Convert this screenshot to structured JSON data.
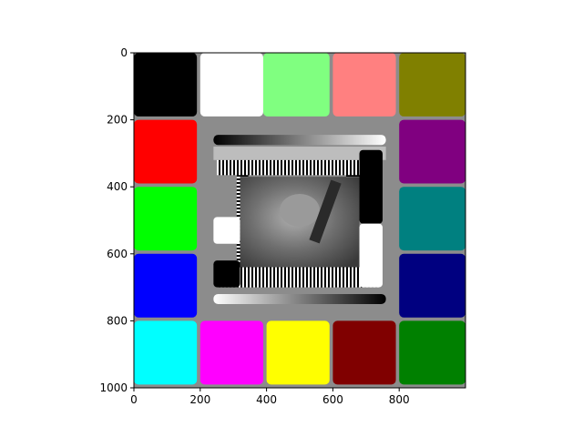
{
  "chart_data": {
    "type": "heatmap",
    "title": "",
    "xlabel": "",
    "ylabel": "",
    "xlim": [
      0,
      1000
    ],
    "ylim": [
      1000,
      0
    ],
    "x_ticks": [
      0,
      200,
      400,
      600,
      800
    ],
    "y_ticks": [
      0,
      200,
      400,
      600,
      800,
      1000
    ],
    "x_tick_labels": [
      "0",
      "200",
      "400",
      "600",
      "800"
    ],
    "y_tick_labels": [
      "0",
      "200",
      "400",
      "600",
      "800",
      "1000"
    ],
    "grid": false,
    "legend": "none",
    "background_color": "#8c8c8c",
    "outer_swatches": [
      {
        "name": "black",
        "color": "#000000",
        "x": [
          0,
          190
        ],
        "y": [
          0,
          190
        ]
      },
      {
        "name": "white",
        "color": "#ffffff",
        "x": [
          200,
          390
        ],
        "y": [
          0,
          190
        ]
      },
      {
        "name": "lightgreen",
        "color": "#80ff80",
        "x": [
          390,
          590
        ],
        "y": [
          0,
          190
        ]
      },
      {
        "name": "salmon",
        "color": "#ff8080",
        "x": [
          600,
          790
        ],
        "y": [
          0,
          190
        ]
      },
      {
        "name": "olive",
        "color": "#808000",
        "x": [
          800,
          1000
        ],
        "y": [
          0,
          190
        ]
      },
      {
        "name": "red",
        "color": "#ff0000",
        "x": [
          0,
          190
        ],
        "y": [
          200,
          390
        ]
      },
      {
        "name": "purple",
        "color": "#800080",
        "x": [
          800,
          1000
        ],
        "y": [
          200,
          390
        ]
      },
      {
        "name": "lime",
        "color": "#00ff00",
        "x": [
          0,
          190
        ],
        "y": [
          400,
          590
        ]
      },
      {
        "name": "teal",
        "color": "#008080",
        "x": [
          800,
          1000
        ],
        "y": [
          400,
          590
        ]
      },
      {
        "name": "blue",
        "color": "#0000ff",
        "x": [
          0,
          190
        ],
        "y": [
          600,
          790
        ]
      },
      {
        "name": "navy",
        "color": "#000080",
        "x": [
          800,
          1000
        ],
        "y": [
          600,
          790
        ]
      },
      {
        "name": "cyan",
        "color": "#00ffff",
        "x": [
          0,
          190
        ],
        "y": [
          800,
          990
        ]
      },
      {
        "name": "magenta",
        "color": "#ff00ff",
        "x": [
          200,
          390
        ],
        "y": [
          800,
          990
        ]
      },
      {
        "name": "yellow",
        "color": "#ffff00",
        "x": [
          400,
          590
        ],
        "y": [
          800,
          990
        ]
      },
      {
        "name": "maroon",
        "color": "#800000",
        "x": [
          600,
          790
        ],
        "y": [
          800,
          990
        ]
      },
      {
        "name": "green",
        "color": "#008000",
        "x": [
          800,
          1000
        ],
        "y": [
          800,
          990
        ]
      }
    ],
    "gradient_bars": [
      {
        "name": "top-gradient",
        "x": [
          240,
          760
        ],
        "y": [
          245,
          275
        ],
        "from": "#000000",
        "to": "#ffffff"
      },
      {
        "name": "bottom-gradient",
        "x": [
          240,
          760
        ],
        "y": [
          720,
          750
        ],
        "from": "#ffffff",
        "to": "#000000"
      }
    ],
    "inner_blocks": [
      {
        "name": "inner-black-top-right",
        "color": "#000000",
        "x": [
          680,
          750
        ],
        "y": [
          290,
          510
        ]
      },
      {
        "name": "inner-white-left",
        "color": "#ffffff",
        "x": [
          240,
          320
        ],
        "y": [
          490,
          570
        ]
      },
      {
        "name": "inner-white-right",
        "color": "#ffffff",
        "x": [
          680,
          750
        ],
        "y": [
          510,
          700
        ]
      },
      {
        "name": "inner-black-bottom-left",
        "color": "#000000",
        "x": [
          240,
          320
        ],
        "y": [
          620,
          700
        ]
      }
    ],
    "center_image": {
      "description_visible": "grayscale photo",
      "x": [
        320,
        680
      ],
      "y": [
        370,
        640
      ]
    }
  }
}
